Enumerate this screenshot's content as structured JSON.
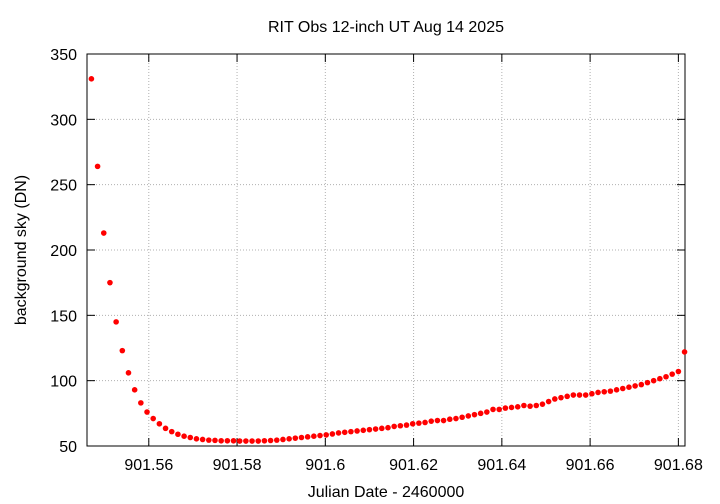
{
  "chart_data": {
    "type": "scatter",
    "title": "RIT Obs 12-inch UT Aug 14 2025",
    "xlabel": "Julian Date - 2460000",
    "ylabel": "background sky (DN)",
    "xlim": [
      901.546,
      901.6815
    ],
    "ylim": [
      50,
      350
    ],
    "xticks": [
      901.56,
      901.58,
      901.6,
      901.62,
      901.64,
      901.66,
      901.68
    ],
    "xtick_labels": [
      "901.56",
      "901.58",
      "901.6",
      "901.62",
      "901.64",
      "901.66",
      "901.68"
    ],
    "yticks": [
      50,
      100,
      150,
      200,
      250,
      300,
      350
    ],
    "ytick_labels": [
      "50",
      "100",
      "150",
      "200",
      "250",
      "300",
      "350"
    ],
    "grid": true,
    "marker_color": "#ff0000",
    "series": [
      {
        "x": [
          901.547,
          901.5484,
          901.5498,
          901.5512,
          901.5526,
          901.554,
          901.5554,
          901.5568,
          901.5582,
          901.5596,
          901.561,
          901.5624,
          901.5638,
          901.5652,
          901.5666,
          901.568,
          901.5694,
          901.5708,
          901.5722,
          901.5736,
          901.575,
          901.5764,
          901.5778,
          901.5792,
          901.5806,
          901.582,
          901.5834,
          901.5848,
          901.5862,
          901.5876,
          901.589,
          901.5904,
          901.5918,
          901.5932,
          901.5946,
          901.596,
          901.5974,
          901.5988,
          901.6002,
          901.6016,
          901.603,
          901.6044,
          901.6058,
          901.6072,
          901.6086,
          901.61,
          901.6114,
          901.6128,
          901.6142,
          901.6156,
          901.617,
          901.6184,
          901.6198,
          901.6212,
          901.6226,
          901.624,
          901.6254,
          901.6268,
          901.6282,
          901.6296,
          901.631,
          901.6324,
          901.6338,
          901.6352,
          901.6366,
          901.638,
          901.6394,
          901.6408,
          901.6422,
          901.6436,
          901.645,
          901.6464,
          901.6478,
          901.6492,
          901.6506,
          901.652,
          901.6534,
          901.6548,
          901.6562,
          901.6576,
          901.659,
          901.6604,
          901.6618,
          901.6632,
          901.6646,
          901.666,
          901.6674,
          901.6688,
          901.6702,
          901.6716,
          901.673,
          901.6744,
          901.6758,
          901.6772,
          901.6786,
          901.68,
          901.6814
        ],
        "y": [
          331,
          264,
          213,
          175,
          145,
          123,
          106,
          93,
          83,
          76,
          71,
          67,
          63.5,
          61,
          59,
          57.5,
          56.5,
          55.5,
          55,
          54.5,
          54.3,
          54,
          54,
          54,
          53.8,
          53.8,
          53.8,
          53.8,
          54,
          54.2,
          54.5,
          55,
          55.5,
          56,
          56.5,
          57,
          57.5,
          58,
          58.5,
          59.2,
          60,
          60.5,
          61,
          61.5,
          62,
          62.5,
          63,
          63.5,
          64,
          65,
          65.5,
          66,
          67,
          67.5,
          68,
          69,
          69.5,
          69.5,
          70.5,
          71,
          72,
          73,
          74,
          75,
          76,
          78,
          78,
          79,
          79.5,
          80,
          81,
          80.5,
          81,
          82,
          84,
          86,
          87,
          88,
          89,
          89,
          89,
          90,
          91,
          91.5,
          92,
          93,
          94,
          95,
          96,
          97,
          98.5,
          100,
          101.5,
          103,
          105,
          107,
          122
        ]
      }
    ]
  }
}
